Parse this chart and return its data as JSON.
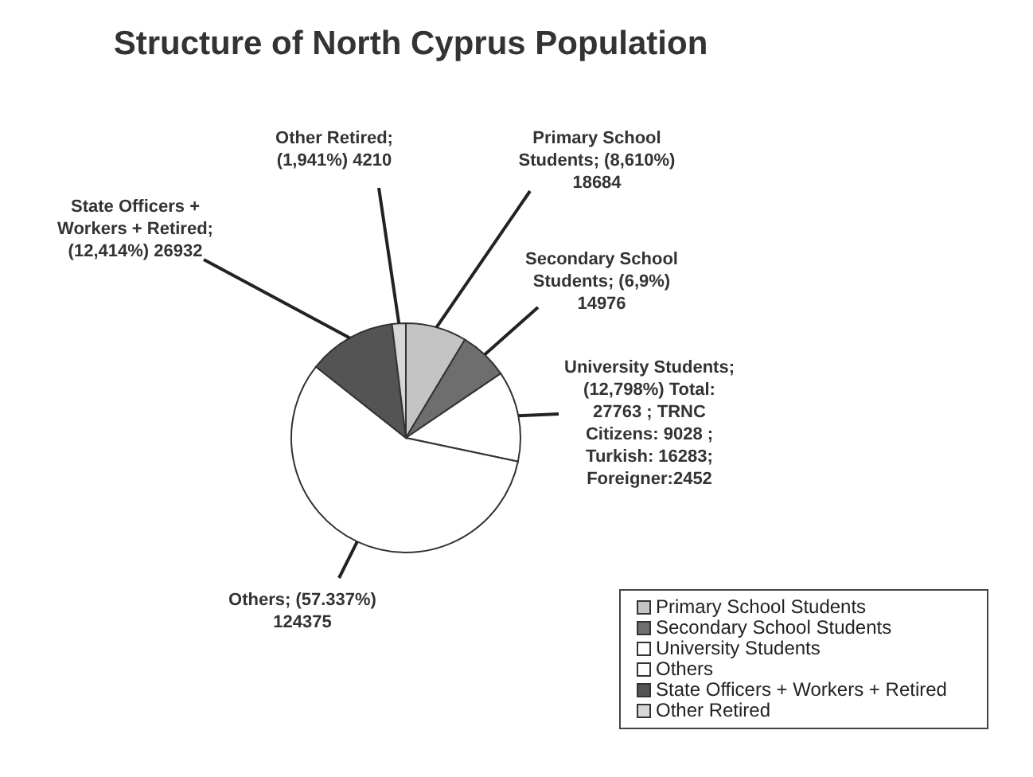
{
  "chart_data": {
    "type": "pie",
    "title": "Structure of North Cyprus Population",
    "categories": [
      "Primary School Students",
      "Secondary School Students",
      "University Students",
      "Others",
      "State Officers + Workers + Retired",
      "Other Retired"
    ],
    "values": [
      18684,
      14976,
      27763,
      124375,
      26932,
      4210
    ],
    "colors": [
      "#c4c4c4",
      "#6e6e6e",
      "#ffffff",
      "#ffffff",
      "#545454",
      "#d6d6d6"
    ],
    "value_labels": [
      "Primary School Students; (8,610%) 18684",
      "Secondary School Students; (6,9%) 14976",
      "University Students; (12,798%) Total: 27763 ; TRNC Citizens: 9028 ; Turkish: 16283; Foreigner:2452",
      "Others; (57.337%) 124375",
      "State Officers + Workers + Retired; (12,414%) 26932",
      "Other Retired; (1,941%) 4210"
    ],
    "legend": "bottom right"
  }
}
